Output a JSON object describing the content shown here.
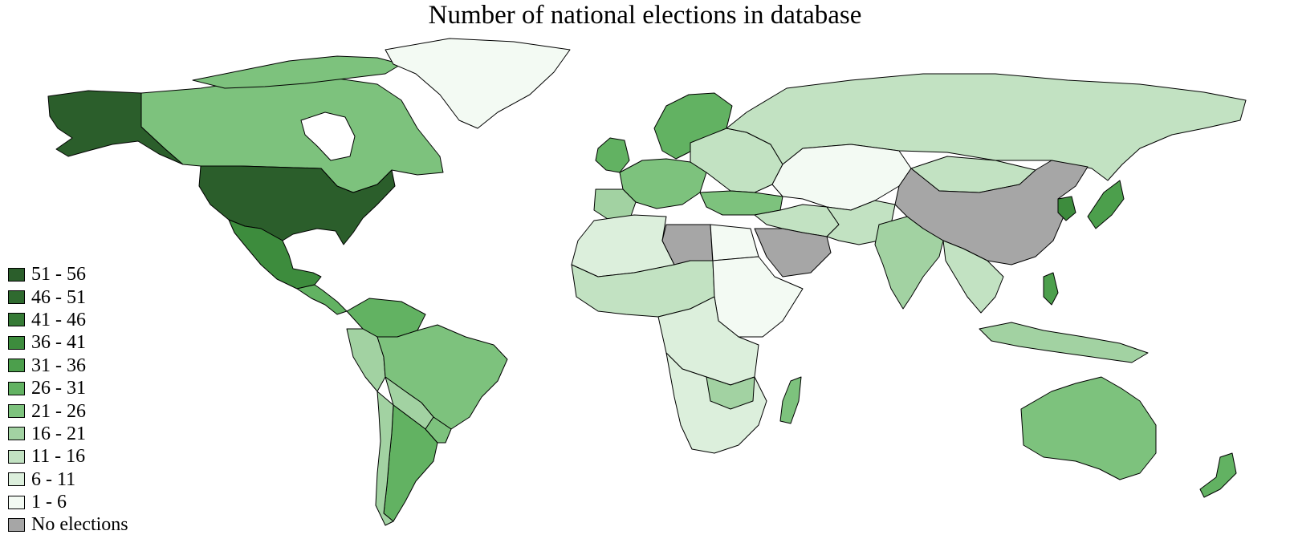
{
  "map": {
    "title": "Number of national elections in database",
    "legend": {
      "placement": "bottom-left",
      "items": [
        {
          "label": "51 - 56",
          "color": "#2b5e2b"
        },
        {
          "label": "46 - 51",
          "color": "#2f6a2f"
        },
        {
          "label": "41 - 46",
          "color": "#357a35"
        },
        {
          "label": "36 - 41",
          "color": "#3d8c3d"
        },
        {
          "label": "31 - 36",
          "color": "#4c9f4c"
        },
        {
          "label": "26 - 31",
          "color": "#62b262"
        },
        {
          "label": "21 - 26",
          "color": "#7dc27d"
        },
        {
          "label": "16 - 21",
          "color": "#a2d2a2"
        },
        {
          "label": "11 - 16",
          "color": "#c2e2c2"
        },
        {
          "label": "6 - 11",
          "color": "#dcefdc"
        },
        {
          "label": "1 - 6",
          "color": "#f3faf3"
        },
        {
          "label": "No elections",
          "color": "#a6a6a6"
        }
      ]
    },
    "colors": {
      "border": "#000000",
      "background": "#ffffff"
    }
  }
}
